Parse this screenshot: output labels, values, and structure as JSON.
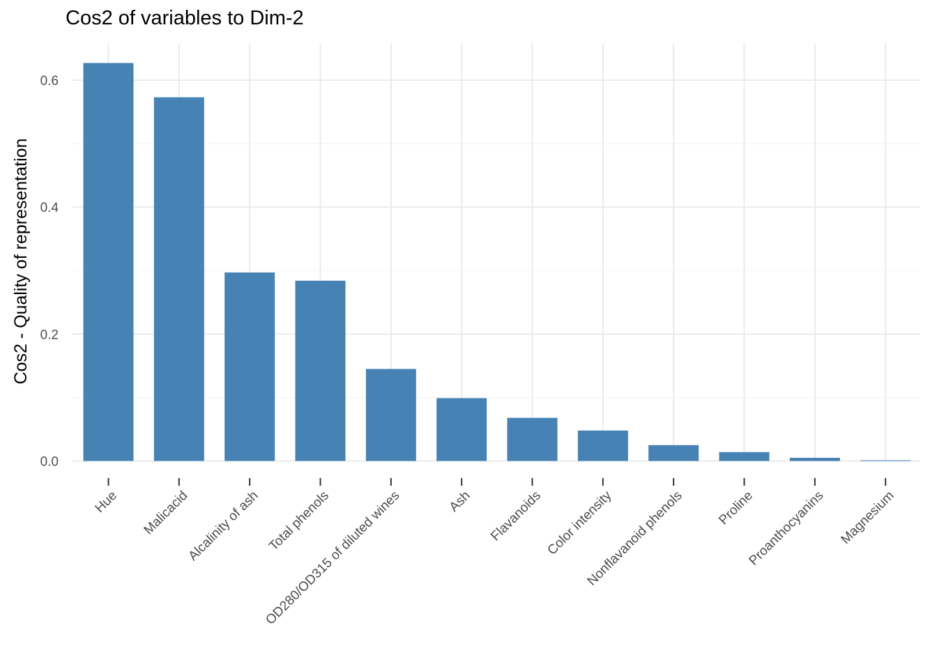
{
  "chart_data": {
    "type": "bar",
    "title": "Cos2 of variables to Dim-2",
    "xlabel": "",
    "ylabel": "Cos2 - Quality of representation",
    "categories": [
      "Hue",
      "Malicacid",
      "Alcalinity of ash",
      "Total phenols",
      "OD280/OD315 of diluted wines",
      "Ash",
      "Flavanoids",
      "Color intensity",
      "Nonflavanoid phenols",
      "Proline",
      "Proanthocyanins",
      "Magnesium"
    ],
    "values": [
      0.627,
      0.573,
      0.297,
      0.284,
      0.145,
      0.099,
      0.068,
      0.048,
      0.025,
      0.014,
      0.005,
      0.001
    ],
    "ylim": [
      0,
      0.63
    ],
    "y_ticks": [
      "0.0",
      "0.2",
      "0.4",
      "0.6"
    ],
    "bar_color": "#4682b4",
    "grid": true,
    "legend": "none"
  }
}
